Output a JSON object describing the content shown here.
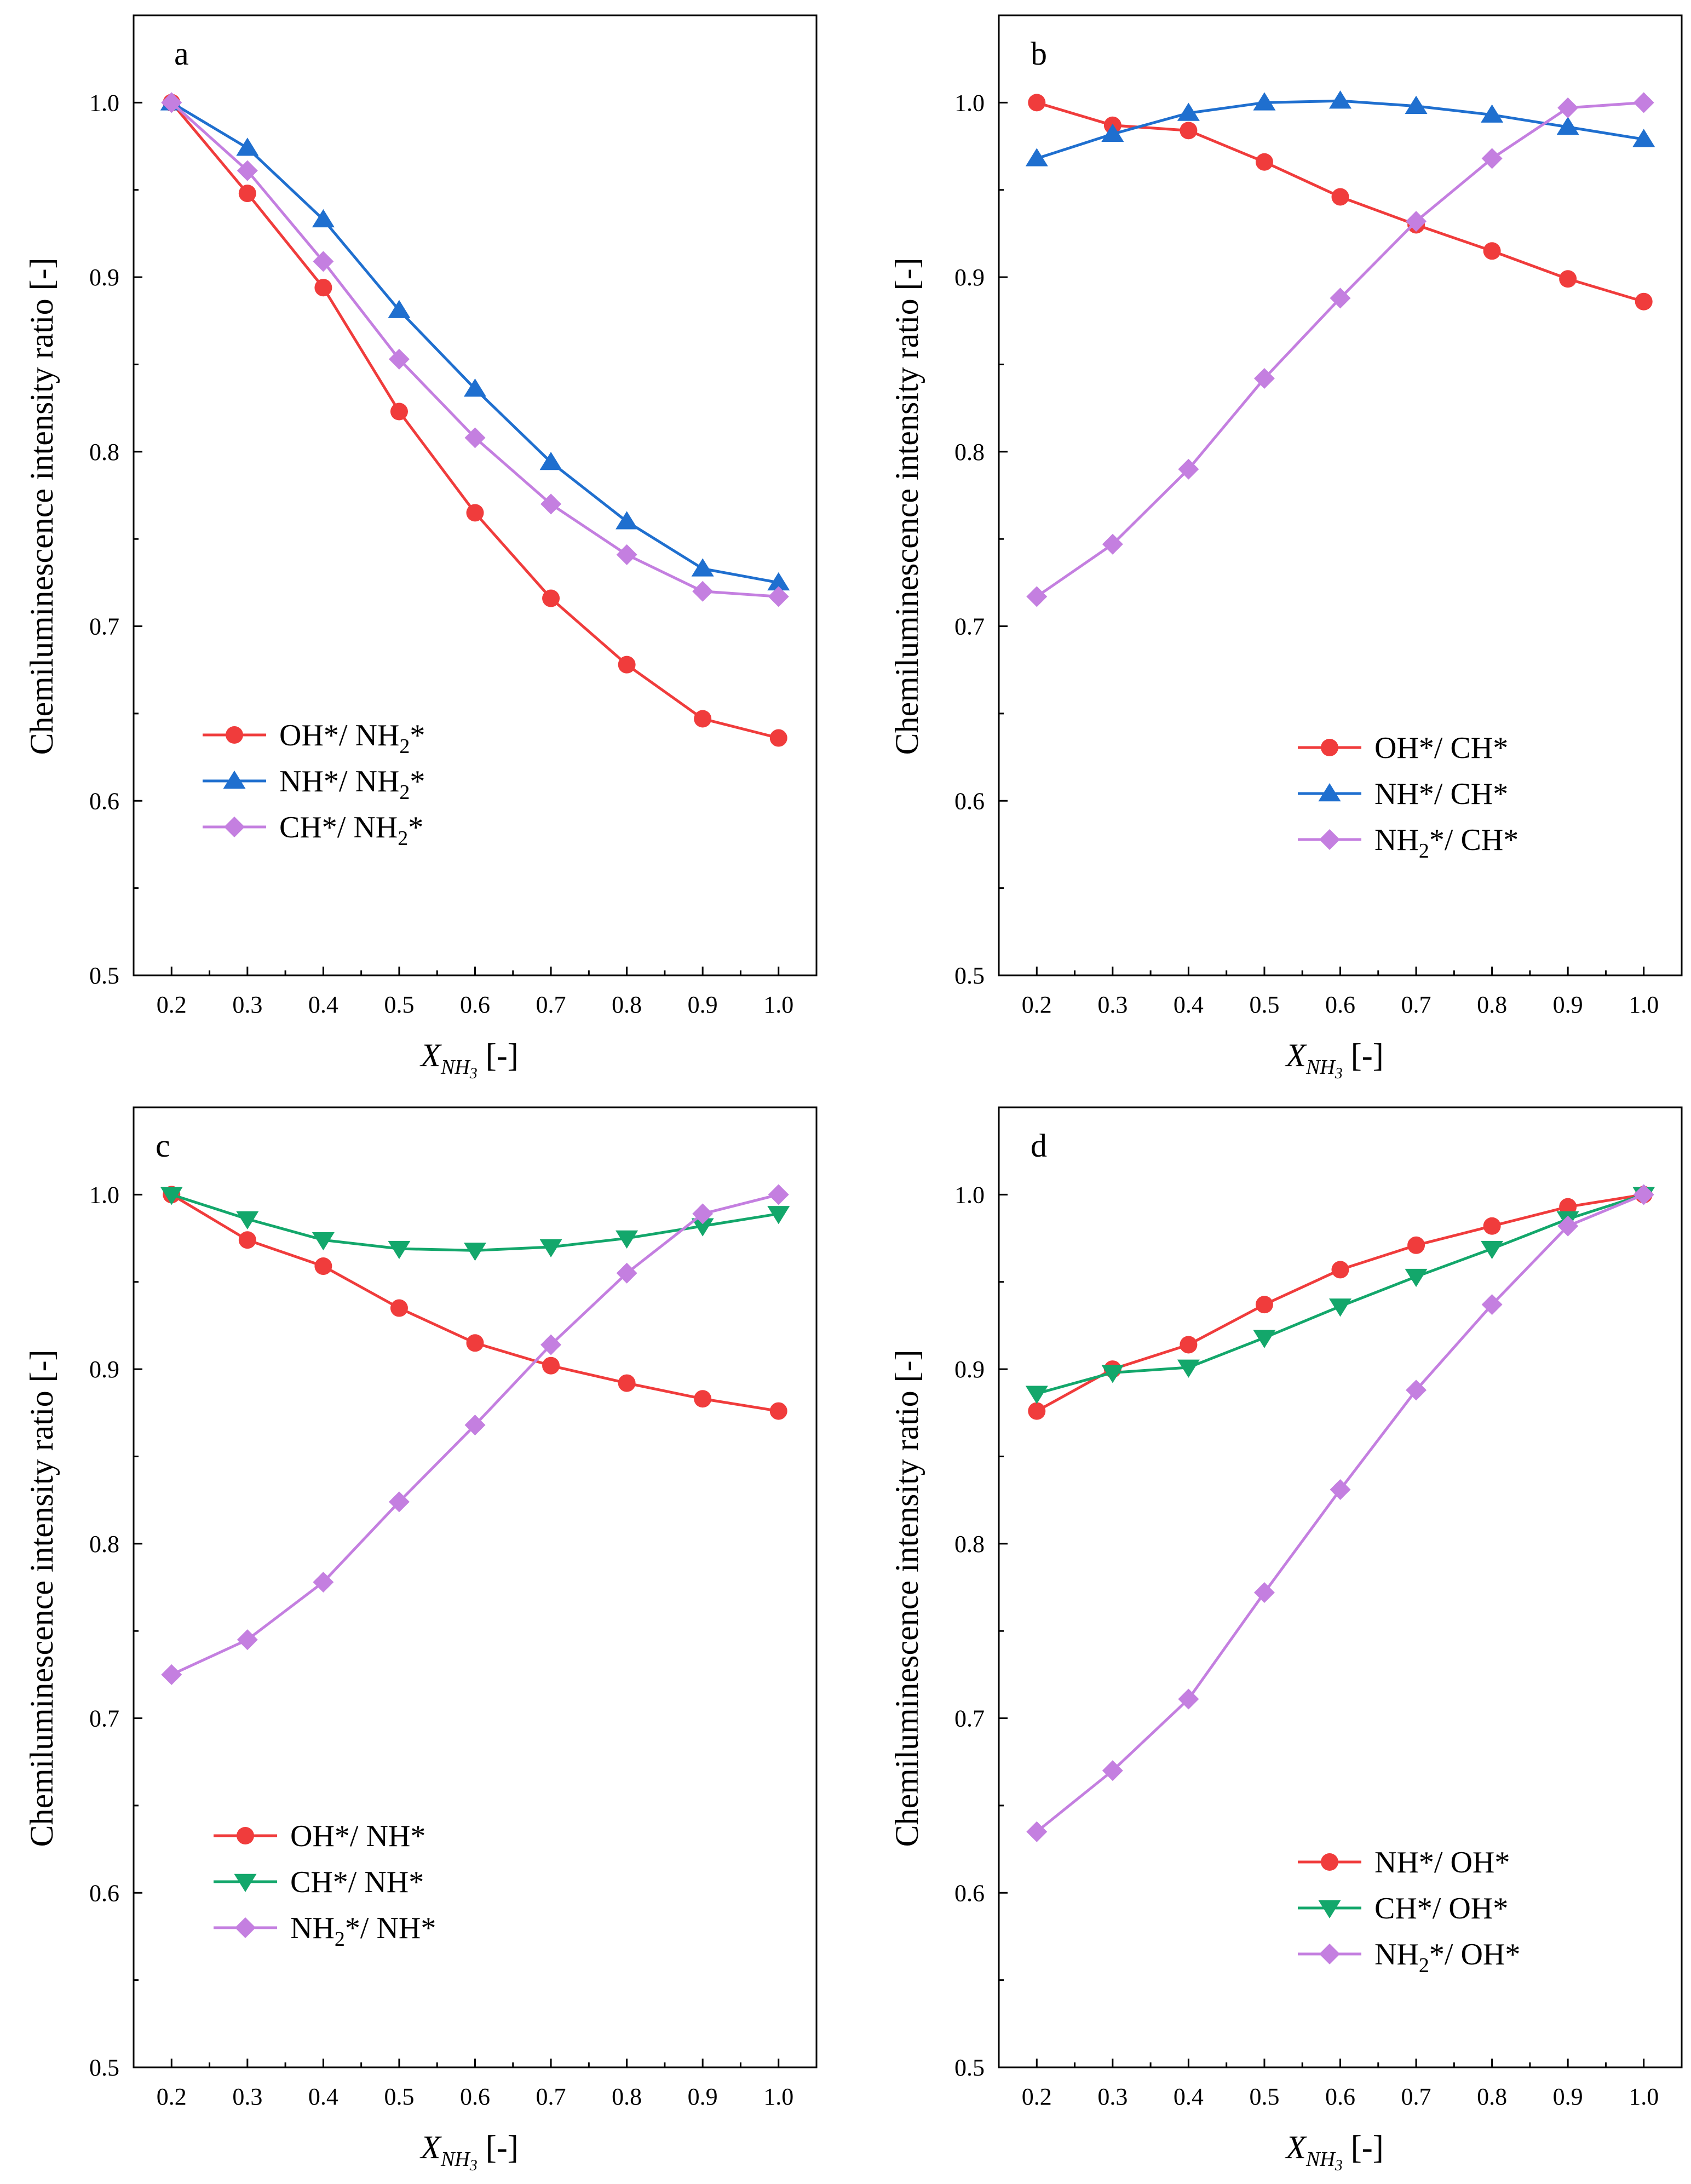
{
  "chart_data": [
    {
      "type": "line",
      "panel_label": "a",
      "xlabel": {
        "main": "X",
        "sub": "NH",
        "subsub": "3",
        "suffix": " [-]"
      },
      "ylabel": "Chemiluminescence intensity ratio [-]",
      "x": [
        0.2,
        0.3,
        0.4,
        0.5,
        0.6,
        0.7,
        0.8,
        0.9,
        1.0
      ],
      "xticks": [
        "0.2",
        "0.3",
        "0.4",
        "0.5",
        "0.6",
        "0.7",
        "0.8",
        "0.9",
        "1.0"
      ],
      "yticks": [
        "0.5",
        "0.6",
        "0.7",
        "0.8",
        "0.9",
        "1.0"
      ],
      "xlim": [
        0.15,
        1.05
      ],
      "ylim": [
        0.5,
        1.05
      ],
      "legend_position": "lower-left",
      "series": [
        {
          "name": "OH*/ NH₂*",
          "color": "#f03c3c",
          "marker": "circle",
          "values": [
            1.0,
            0.948,
            0.894,
            0.823,
            0.765,
            0.716,
            0.678,
            0.647,
            0.636
          ]
        },
        {
          "name": "NH*/ NH₂*",
          "color": "#1f6fcf",
          "marker": "triangle-up",
          "values": [
            1.0,
            0.974,
            0.933,
            0.881,
            0.836,
            0.794,
            0.76,
            0.733,
            0.725
          ]
        },
        {
          "name": "CH*/ NH₂*",
          "color": "#c47fe0",
          "marker": "diamond",
          "values": [
            1.0,
            0.961,
            0.909,
            0.853,
            0.808,
            0.77,
            0.741,
            0.72,
            0.717
          ]
        }
      ]
    },
    {
      "type": "line",
      "panel_label": "b",
      "xlabel": {
        "main": "X",
        "sub": "NH",
        "subsub": "3",
        "suffix": " [-]"
      },
      "ylabel": "Chemiluminescence intensity ratio [-]",
      "x": [
        0.2,
        0.3,
        0.4,
        0.5,
        0.6,
        0.7,
        0.8,
        0.9,
        1.0
      ],
      "xticks": [
        "0.2",
        "0.3",
        "0.4",
        "0.5",
        "0.6",
        "0.7",
        "0.8",
        "0.9",
        "1.0"
      ],
      "yticks": [
        "0.5",
        "0.6",
        "0.7",
        "0.8",
        "0.9",
        "1.0"
      ],
      "xlim": [
        0.15,
        1.05
      ],
      "ylim": [
        0.5,
        1.05
      ],
      "legend_position": "lower-right",
      "series": [
        {
          "name": "OH*/ CH*",
          "color": "#f03c3c",
          "marker": "circle",
          "values": [
            1.0,
            0.987,
            0.984,
            0.966,
            0.946,
            0.93,
            0.915,
            0.899,
            0.886
          ]
        },
        {
          "name": "NH*/ CH*",
          "color": "#1f6fcf",
          "marker": "triangle-up",
          "values": [
            0.968,
            0.982,
            0.994,
            1.0,
            1.001,
            0.998,
            0.993,
            0.986,
            0.979
          ]
        },
        {
          "name": "NH₂*/ CH*",
          "color": "#c47fe0",
          "marker": "diamond",
          "values": [
            0.717,
            0.747,
            0.79,
            0.842,
            0.888,
            0.932,
            0.968,
            0.997,
            1.0
          ]
        }
      ]
    },
    {
      "type": "line",
      "panel_label": "c",
      "xlabel": {
        "main": "X",
        "sub": "NH",
        "subsub": "3",
        "suffix": " [-]"
      },
      "ylabel": "Chemiluminescence intensity ratio [-]",
      "x": [
        0.2,
        0.3,
        0.4,
        0.5,
        0.6,
        0.7,
        0.8,
        0.9,
        1.0
      ],
      "xticks": [
        "0.2",
        "0.3",
        "0.4",
        "0.5",
        "0.6",
        "0.7",
        "0.8",
        "0.9",
        "1.0"
      ],
      "yticks": [
        "0.5",
        "0.6",
        "0.7",
        "0.8",
        "0.9",
        "1.0"
      ],
      "xlim": [
        0.15,
        1.05
      ],
      "ylim": [
        0.5,
        1.05
      ],
      "legend_position": "lower-left",
      "series": [
        {
          "name": "OH*/ NH*",
          "color": "#f03c3c",
          "marker": "circle",
          "values": [
            1.0,
            0.974,
            0.959,
            0.935,
            0.915,
            0.902,
            0.892,
            0.883,
            0.876
          ]
        },
        {
          "name": "CH*/ NH*",
          "color": "#13a76b",
          "marker": "triangle-down",
          "values": [
            1.0,
            0.986,
            0.974,
            0.969,
            0.968,
            0.97,
            0.975,
            0.982,
            0.989
          ]
        },
        {
          "name": "NH₂*/ NH*",
          "color": "#c47fe0",
          "marker": "diamond",
          "values": [
            0.725,
            0.745,
            0.778,
            0.824,
            0.868,
            0.914,
            0.955,
            0.989,
            1.0
          ]
        }
      ]
    },
    {
      "type": "line",
      "panel_label": "d",
      "xlabel": {
        "main": "X",
        "sub": "NH",
        "subsub": "3",
        "suffix": " [-]"
      },
      "ylabel": "Chemiluminescence intensity ratio [-]",
      "x": [
        0.2,
        0.3,
        0.4,
        0.5,
        0.6,
        0.7,
        0.8,
        0.9,
        1.0
      ],
      "xticks": [
        "0.2",
        "0.3",
        "0.4",
        "0.5",
        "0.6",
        "0.7",
        "0.8",
        "0.9",
        "1.0"
      ],
      "yticks": [
        "0.5",
        "0.6",
        "0.7",
        "0.8",
        "0.9",
        "1.0"
      ],
      "xlim": [
        0.15,
        1.05
      ],
      "ylim": [
        0.5,
        1.05
      ],
      "legend_position": "lower-right",
      "series": [
        {
          "name": "NH*/ OH*",
          "color": "#f03c3c",
          "marker": "circle",
          "values": [
            0.876,
            0.9,
            0.914,
            0.937,
            0.957,
            0.971,
            0.982,
            0.993,
            1.0
          ]
        },
        {
          "name": "CH*/ OH*",
          "color": "#13a76b",
          "marker": "triangle-down",
          "values": [
            0.886,
            0.898,
            0.901,
            0.918,
            0.936,
            0.953,
            0.969,
            0.986,
            1.0
          ]
        },
        {
          "name": "NH₂*/ OH*",
          "color": "#c47fe0",
          "marker": "diamond",
          "values": [
            0.635,
            0.67,
            0.711,
            0.772,
            0.831,
            0.888,
            0.937,
            0.982,
            1.0
          ]
        }
      ]
    }
  ]
}
